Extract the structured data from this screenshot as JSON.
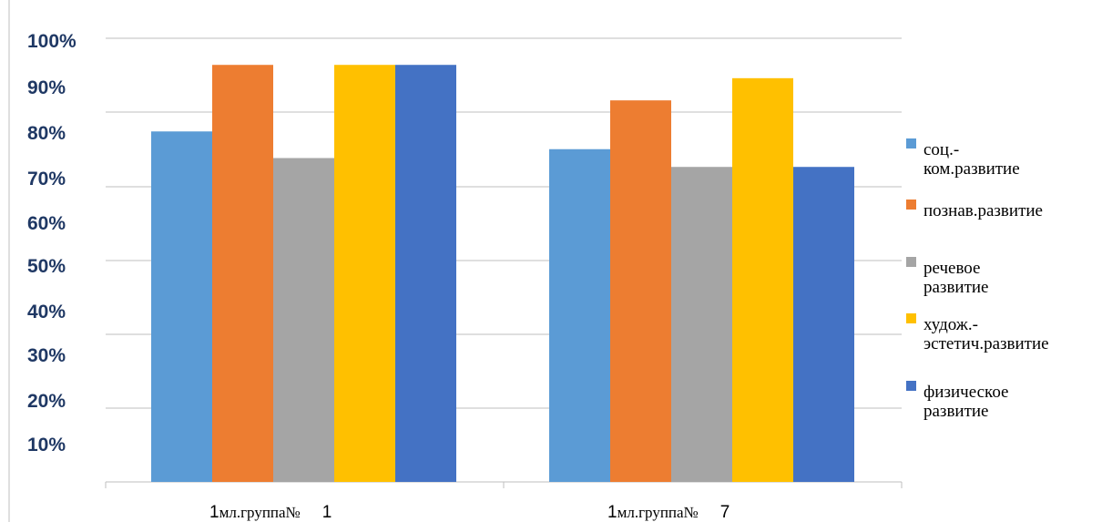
{
  "chart_data": {
    "type": "bar",
    "categories": [
      {
        "parts": [
          "1",
          "мл.группа№",
          "1"
        ]
      },
      {
        "parts": [
          "1",
          "мл.группа№",
          "7"
        ]
      }
    ],
    "y_tick_labels": [
      "100%",
      "90%",
      "80%",
      "70%",
      "60%",
      "50%",
      "40%",
      "30%",
      "20%",
      "10%"
    ],
    "ylim": [
      0,
      100
    ],
    "grid": true,
    "legend_position": "right",
    "series": [
      {
        "name_lines": [
          "соц.-",
          "ком.развитие"
        ],
        "color": "#5b9bd5",
        "values": [
          79,
          75
        ]
      },
      {
        "name_lines": [
          "познав.развитие"
        ],
        "color": "#ed7d31",
        "values": [
          94,
          86
        ]
      },
      {
        "name_lines": [
          "речевое",
          "развитие"
        ],
        "color": "#a5a5a5",
        "values": [
          73,
          71
        ]
      },
      {
        "name_lines": [
          "худож.-",
          "эстетич.развитие"
        ],
        "color": "#ffc000",
        "values": [
          94,
          91
        ]
      },
      {
        "name_lines": [
          "физическое",
          "развитие"
        ],
        "color": "#4472c4",
        "values": [
          94,
          71
        ]
      }
    ]
  }
}
